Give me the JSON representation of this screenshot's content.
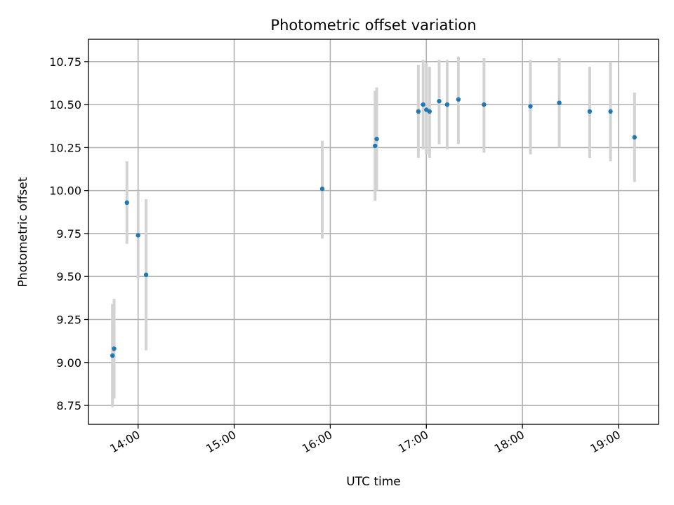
{
  "chart_data": {
    "type": "scatter",
    "title": "Photometric offset variation",
    "xlabel": "UTC time",
    "ylabel": "Photometric offset",
    "xlim": [
      "13:29",
      "19:25"
    ],
    "ylim": [
      8.64,
      10.88
    ],
    "xticks": [
      "14:00",
      "15:00",
      "16:00",
      "17:00",
      "18:00",
      "19:00"
    ],
    "yticks": [
      8.75,
      9.0,
      9.25,
      9.5,
      9.75,
      10.0,
      10.25,
      10.5,
      10.75
    ],
    "ytick_labels": [
      "8.75",
      "9.00",
      "9.25",
      "9.50",
      "9.75",
      "10.00",
      "10.25",
      "10.50",
      "10.75"
    ],
    "grid": true,
    "marker_color": "#1f77b4",
    "errorbar_color": "#d3d3d3",
    "points": [
      {
        "x": "13:44",
        "y": 9.04,
        "ylow": 8.74,
        "yhigh": 9.34
      },
      {
        "x": "13:45",
        "y": 9.08,
        "ylow": 8.79,
        "yhigh": 9.37
      },
      {
        "x": "13:53",
        "y": 9.93,
        "ylow": 9.69,
        "yhigh": 10.17
      },
      {
        "x": "14:00",
        "y": 9.74,
        "ylow": 9.49,
        "yhigh": 9.99
      },
      {
        "x": "14:05",
        "y": 9.51,
        "ylow": 9.07,
        "yhigh": 9.95
      },
      {
        "x": "15:55",
        "y": 10.01,
        "ylow": 9.72,
        "yhigh": 10.29
      },
      {
        "x": "16:28",
        "y": 10.26,
        "ylow": 9.94,
        "yhigh": 10.58
      },
      {
        "x": "16:29",
        "y": 10.3,
        "ylow": 10.0,
        "yhigh": 10.6
      },
      {
        "x": "16:55",
        "y": 10.46,
        "ylow": 10.19,
        "yhigh": 10.73
      },
      {
        "x": "16:58",
        "y": 10.5,
        "ylow": 10.24,
        "yhigh": 10.76
      },
      {
        "x": "17:00",
        "y": 10.47,
        "ylow": 10.21,
        "yhigh": 10.74
      },
      {
        "x": "17:02",
        "y": 10.46,
        "ylow": 10.19,
        "yhigh": 10.72
      },
      {
        "x": "17:08",
        "y": 10.52,
        "ylow": 10.27,
        "yhigh": 10.76
      },
      {
        "x": "17:13",
        "y": 10.5,
        "ylow": 10.24,
        "yhigh": 10.76
      },
      {
        "x": "17:20",
        "y": 10.53,
        "ylow": 10.27,
        "yhigh": 10.78
      },
      {
        "x": "17:36",
        "y": 10.5,
        "ylow": 10.22,
        "yhigh": 10.77
      },
      {
        "x": "18:05",
        "y": 10.49,
        "ylow": 10.21,
        "yhigh": 10.76
      },
      {
        "x": "18:23",
        "y": 10.51,
        "ylow": 10.25,
        "yhigh": 10.77
      },
      {
        "x": "18:42",
        "y": 10.46,
        "ylow": 10.19,
        "yhigh": 10.72
      },
      {
        "x": "18:55",
        "y": 10.46,
        "ylow": 10.17,
        "yhigh": 10.75
      },
      {
        "x": "19:10",
        "y": 10.31,
        "ylow": 10.05,
        "yhigh": 10.57
      }
    ]
  }
}
